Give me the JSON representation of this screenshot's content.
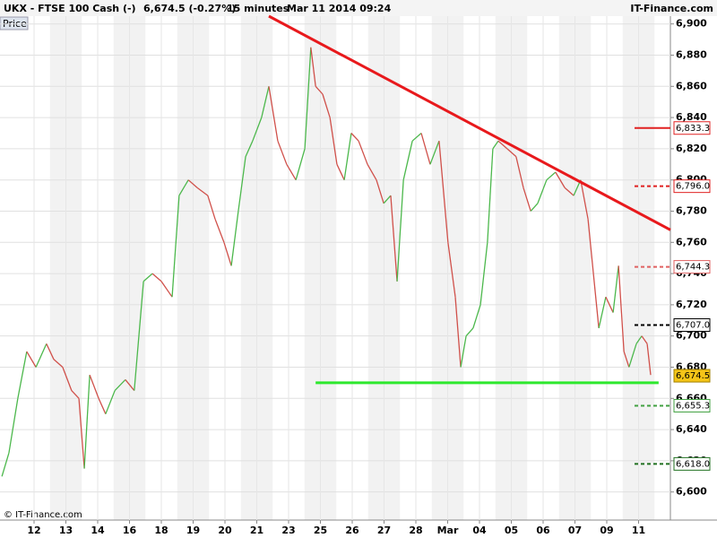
{
  "chart_data": {
    "type": "line",
    "title": "UKX - FTSE 100 Cash (-)",
    "last_quote": "6,674.5 (-0.27%)",
    "interval": "15 minutes",
    "timestamp": "Mar 11 2014 09:24",
    "brand": "IT-Finance.com",
    "copyright": "© IT-Finance.com",
    "panel_label": "Price",
    "up_color": "#4cb84c",
    "down_color": "#d0504a",
    "xlim": [
      -1.07,
      20
    ],
    "ylim": [
      6582,
      6905
    ],
    "xticks": [
      {
        "value": 0,
        "label": "12"
      },
      {
        "value": 1,
        "label": "13"
      },
      {
        "value": 2,
        "label": "14"
      },
      {
        "value": 3,
        "label": "16"
      },
      {
        "value": 4,
        "label": "18"
      },
      {
        "value": 5,
        "label": "19"
      },
      {
        "value": 6,
        "label": "20"
      },
      {
        "value": 7,
        "label": "21"
      },
      {
        "value": 8,
        "label": "23"
      },
      {
        "value": 9,
        "label": "25"
      },
      {
        "value": 10,
        "label": "26"
      },
      {
        "value": 11,
        "label": "27"
      },
      {
        "value": 12,
        "label": "28"
      },
      {
        "value": 13,
        "label": "Mar"
      },
      {
        "value": 14,
        "label": "04"
      },
      {
        "value": 15,
        "label": "05"
      },
      {
        "value": 16,
        "label": "06"
      },
      {
        "value": 17,
        "label": "07"
      },
      {
        "value": 18,
        "label": "09"
      },
      {
        "value": 19,
        "label": "11"
      }
    ],
    "yticks": [
      {
        "value": 6600,
        "label": "6,600"
      },
      {
        "value": 6620,
        "label": "6,620"
      },
      {
        "value": 6640,
        "label": "6,640"
      },
      {
        "value": 6660,
        "label": "6,660"
      },
      {
        "value": 6680,
        "label": "6,680"
      },
      {
        "value": 6700,
        "label": "6,700"
      },
      {
        "value": 6720,
        "label": "6,720"
      },
      {
        "value": 6740,
        "label": "6,740"
      },
      {
        "value": 6760,
        "label": "6,760"
      },
      {
        "value": 6780,
        "label": "6,780"
      },
      {
        "value": 6800,
        "label": "6,800"
      },
      {
        "value": 6820,
        "label": "6,820"
      },
      {
        "value": 6840,
        "label": "6,840"
      },
      {
        "value": 6860,
        "label": "6,860"
      },
      {
        "value": 6880,
        "label": "6,880"
      },
      {
        "value": 6900,
        "label": "6,900"
      }
    ],
    "grid": true,
    "x": [
      -1.01,
      -0.79,
      -0.51,
      -0.23,
      0.06,
      0.39,
      0.62,
      0.9,
      1.18,
      1.41,
      1.58,
      1.75,
      2.03,
      2.25,
      2.54,
      2.87,
      3.15,
      3.44,
      3.72,
      4.0,
      4.34,
      4.56,
      4.85,
      5.13,
      5.46,
      5.69,
      5.97,
      6.2,
      6.42,
      6.65,
      6.87,
      7.15,
      7.38,
      7.66,
      7.94,
      8.23,
      8.51,
      8.7,
      8.85,
      9.07,
      9.3,
      9.52,
      9.75,
      9.97,
      10.2,
      10.48,
      10.76,
      10.99,
      11.21,
      11.41,
      11.61,
      11.89,
      12.17,
      12.45,
      12.73,
      13.01,
      13.24,
      13.41,
      13.58,
      13.8,
      14.03,
      14.25,
      14.42,
      14.59,
      14.87,
      15.15,
      15.38,
      15.61,
      15.83,
      16.11,
      16.39,
      16.68,
      16.96,
      17.18,
      17.41,
      17.58,
      17.75,
      17.97,
      18.2,
      18.37,
      18.54,
      18.7,
      18.93,
      19.1,
      19.27,
      19.38
    ],
    "values": [
      6610,
      6625,
      6660,
      6690,
      6680,
      6695,
      6685,
      6680,
      6665,
      6660,
      6615,
      6675,
      6660,
      6650,
      6665,
      6672,
      6665,
      6735,
      6740,
      6735,
      6725,
      6790,
      6800,
      6795,
      6790,
      6775,
      6760,
      6745,
      6780,
      6815,
      6825,
      6840,
      6860,
      6825,
      6810,
      6800,
      6820,
      6885,
      6860,
      6855,
      6840,
      6810,
      6800,
      6830,
      6825,
      6810,
      6800,
      6785,
      6790,
      6735,
      6800,
      6825,
      6830,
      6810,
      6825,
      6760,
      6725,
      6680,
      6700,
      6705,
      6720,
      6760,
      6820,
      6825,
      6820,
      6815,
      6795,
      6780,
      6785,
      6800,
      6805,
      6795,
      6790,
      6800,
      6775,
      6740,
      6705,
      6725,
      6715,
      6745,
      6690,
      6680,
      6695,
      6700,
      6695,
      6675
    ],
    "trendlines": [
      {
        "color": "#e8191c",
        "x": [
          7.38,
          20
        ],
        "values": [
          6905,
          6768
        ]
      },
      {
        "color": "#2ee82e",
        "x": [
          8.85,
          19.63
        ],
        "values": [
          6670,
          6670
        ]
      }
    ],
    "levels": [
      {
        "value": 6833.3,
        "label": "6,833.3",
        "color": "#e02020",
        "style": "solid"
      },
      {
        "value": 6796.0,
        "label": "6,796.0",
        "color": "#e02020",
        "style": "dashed"
      },
      {
        "value": 6744.3,
        "label": "6,744.3",
        "color": "#e06060",
        "style": "dashed"
      },
      {
        "value": 6707.0,
        "label": "6,707.0",
        "color": "#000000",
        "style": "dashed"
      },
      {
        "value": 6674.5,
        "label": "6,674.5",
        "color": "#000000",
        "style": "current"
      },
      {
        "value": 6655.3,
        "label": "6,655.3",
        "color": "#40a040",
        "style": "dashed"
      },
      {
        "value": 6618.0,
        "label": "6,618.0",
        "color": "#207020",
        "style": "dashed"
      }
    ]
  }
}
